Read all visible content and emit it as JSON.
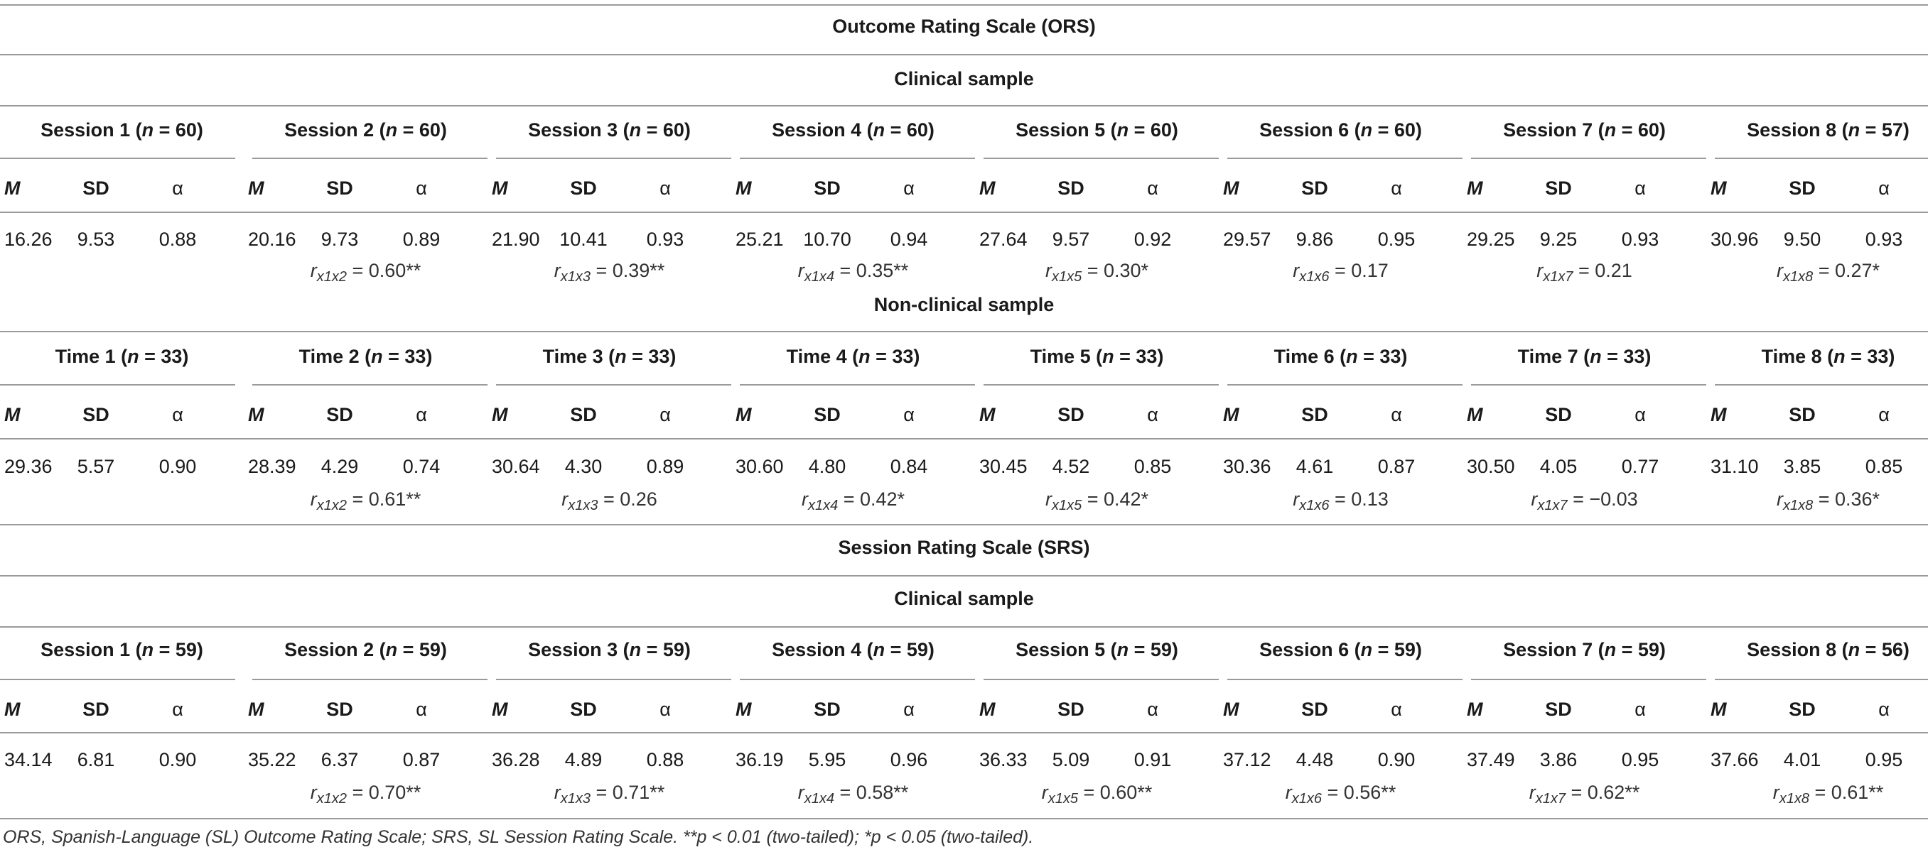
{
  "ors_title": "Outcome Rating Scale (ORS)",
  "srs_title": "Session Rating Scale (SRS)",
  "col_labels": {
    "m": "M",
    "sd": "SD",
    "alpha": "α"
  },
  "ors_clinical": {
    "title": "Clinical sample",
    "groups": [
      {
        "label": "Session 1",
        "n": "60",
        "m": "16.26",
        "sd": "9.53",
        "alpha": "0.88"
      },
      {
        "label": "Session 2",
        "n": "60",
        "m": "20.16",
        "sd": "9.73",
        "alpha": "0.89",
        "r_sub": "x1x2",
        "r_val": "= 0.60**"
      },
      {
        "label": "Session 3",
        "n": "60",
        "m": "21.90",
        "sd": "10.41",
        "alpha": "0.93",
        "r_sub": "x1x3",
        "r_val": "= 0.39**"
      },
      {
        "label": "Session 4",
        "n": "60",
        "m": "25.21",
        "sd": "10.70",
        "alpha": "0.94",
        "r_sub": "x1x4",
        "r_val": "= 0.35**"
      },
      {
        "label": "Session 5",
        "n": "60",
        "m": "27.64",
        "sd": "9.57",
        "alpha": "0.92",
        "r_sub": "x1x5",
        "r_val": "= 0.30*"
      },
      {
        "label": "Session 6",
        "n": "60",
        "m": "29.57",
        "sd": "9.86",
        "alpha": "0.95",
        "r_sub": "x1x6",
        "r_val": "= 0.17"
      },
      {
        "label": "Session 7",
        "n": "60",
        "m": "29.25",
        "sd": "9.25",
        "alpha": "0.93",
        "r_sub": "x1x7",
        "r_val": "= 0.21"
      },
      {
        "label": "Session 8",
        "n": "57",
        "m": "30.96",
        "sd": "9.50",
        "alpha": "0.93",
        "r_sub": "x1x8",
        "r_val": "= 0.27*"
      }
    ]
  },
  "ors_nonclinical": {
    "title": "Non-clinical sample",
    "groups": [
      {
        "label": "Time 1",
        "n": "33",
        "m": "29.36",
        "sd": "5.57",
        "alpha": "0.90"
      },
      {
        "label": "Time 2",
        "n": "33",
        "m": "28.39",
        "sd": "4.29",
        "alpha": "0.74",
        "r_sub": "x1x2",
        "r_val": "= 0.61**"
      },
      {
        "label": "Time 3",
        "n": "33",
        "m": "30.64",
        "sd": "4.30",
        "alpha": "0.89",
        "r_sub": "x1x3",
        "r_val": "= 0.26"
      },
      {
        "label": "Time 4",
        "n": "33",
        "m": "30.60",
        "sd": "4.80",
        "alpha": "0.84",
        "r_sub": "x1x4",
        "r_val": "= 0.42*"
      },
      {
        "label": "Time 5",
        "n": "33",
        "m": "30.45",
        "sd": "4.52",
        "alpha": "0.85",
        "r_sub": "x1x5",
        "r_val": "= 0.42*"
      },
      {
        "label": "Time 6",
        "n": "33",
        "m": "30.36",
        "sd": "4.61",
        "alpha": "0.87",
        "r_sub": "x1x6",
        "r_val": "= 0.13"
      },
      {
        "label": "Time 7",
        "n": "33",
        "m": "30.50",
        "sd": "4.05",
        "alpha": "0.77",
        "r_sub": "x1x7",
        "r_val": "= −0.03"
      },
      {
        "label": "Time 8",
        "n": "33",
        "m": "31.10",
        "sd": "3.85",
        "alpha": "0.85",
        "r_sub": "x1x8",
        "r_val": "= 0.36*"
      }
    ]
  },
  "srs_clinical": {
    "title": "Clinical sample",
    "groups": [
      {
        "label": "Session 1",
        "n": "59",
        "m": "34.14",
        "sd": "6.81",
        "alpha": "0.90"
      },
      {
        "label": "Session 2",
        "n": "59",
        "m": "35.22",
        "sd": "6.37",
        "alpha": "0.87",
        "r_sub": "x1x2",
        "r_val": "= 0.70**"
      },
      {
        "label": "Session 3",
        "n": "59",
        "m": "36.28",
        "sd": "4.89",
        "alpha": "0.88",
        "r_sub": "x1x3",
        "r_val": "= 0.71**"
      },
      {
        "label": "Session 4",
        "n": "59",
        "m": "36.19",
        "sd": "5.95",
        "alpha": "0.96",
        "r_sub": "x1x4",
        "r_val": "= 0.58**"
      },
      {
        "label": "Session 5",
        "n": "59",
        "m": "36.33",
        "sd": "5.09",
        "alpha": "0.91",
        "r_sub": "x1x5",
        "r_val": "= 0.60**"
      },
      {
        "label": "Session 6",
        "n": "59",
        "m": "37.12",
        "sd": "4.48",
        "alpha": "0.90",
        "r_sub": "x1x6",
        "r_val": "= 0.56**"
      },
      {
        "label": "Session 7",
        "n": "59",
        "m": "37.49",
        "sd": "3.86",
        "alpha": "0.95",
        "r_sub": "x1x7",
        "r_val": "= 0.62**"
      },
      {
        "label": "Session 8",
        "n": "56",
        "m": "37.66",
        "sd": "4.01",
        "alpha": "0.95",
        "r_sub": "x1x8",
        "r_val": "= 0.61**"
      }
    ]
  },
  "footnote": "ORS, Spanish-Language (SL) Outcome Rating Scale; SRS, SL Session Rating Scale. **p < 0.01 (two-tailed); *p < 0.05 (two-tailed)."
}
